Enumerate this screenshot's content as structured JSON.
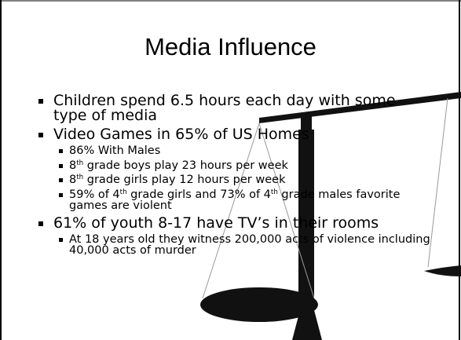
{
  "slide": {
    "title": "Media Influence",
    "bullets": [
      {
        "level": 1,
        "segments": [
          {
            "text": "Children spend 6.5 hours each day with some type of media"
          }
        ]
      },
      {
        "level": 1,
        "segments": [
          {
            "text": "Video Games in 65% of US Homes"
          }
        ]
      },
      {
        "level": 2,
        "segments": [
          {
            "text": "86% With Males"
          }
        ]
      },
      {
        "level": 2,
        "segments": [
          {
            "text": "8"
          },
          {
            "sup": "th"
          },
          {
            "text": " grade boys play 23 hours per week"
          }
        ]
      },
      {
        "level": 2,
        "segments": [
          {
            "text": "8"
          },
          {
            "sup": "th"
          },
          {
            "text": " grade girls play 12 hours per week"
          }
        ]
      },
      {
        "level": 2,
        "segments": [
          {
            "text": "59% of 4"
          },
          {
            "sup": "th"
          },
          {
            "text": " grade girls and 73% of 4"
          },
          {
            "sup": "th"
          },
          {
            "text": " grade males favorite games are violent"
          }
        ]
      },
      {
        "level": 1,
        "segments": [
          {
            "text": "61% of youth 8-17 have TV’s in their rooms"
          }
        ]
      },
      {
        "level": 2,
        "segments": [
          {
            "text": "At 18 years old they witness 200,000 acts of violence including 40,000 acts of murder"
          }
        ]
      }
    ]
  }
}
